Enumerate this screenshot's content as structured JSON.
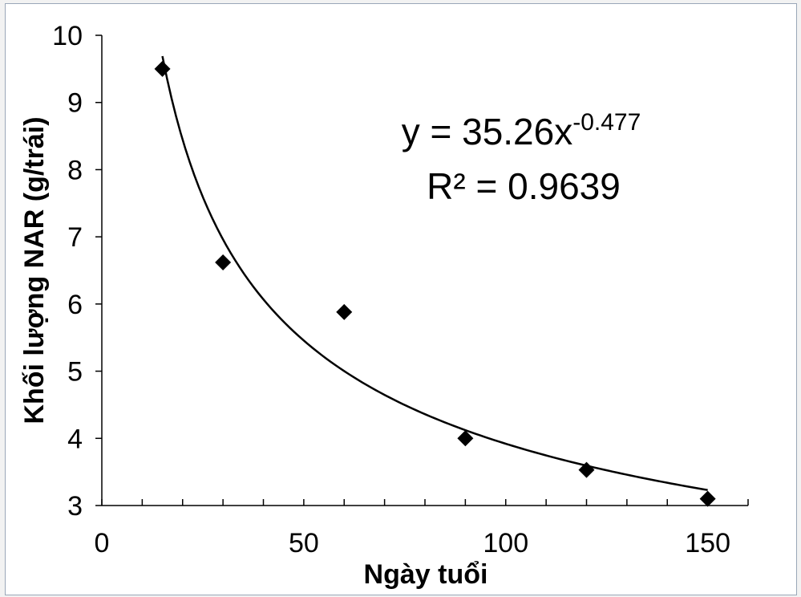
{
  "chart_data": {
    "type": "scatter",
    "xlabel": "Ngày tuổi",
    "ylabel": "Khối lượng NAR (g/trái)",
    "xlim": [
      0,
      160
    ],
    "ylim": [
      3,
      10
    ],
    "x_ticks": [
      "0",
      "50",
      "100",
      "150"
    ],
    "y_ticks": [
      "3",
      "4",
      "5",
      "6",
      "7",
      "8",
      "9",
      "10"
    ],
    "x_minor_step": 10,
    "grid": false,
    "marker": "diamond",
    "series": [
      {
        "x": [
          15,
          30,
          60,
          90,
          120,
          150
        ],
        "y": [
          9.5,
          6.62,
          5.88,
          4.0,
          3.53,
          3.1
        ]
      }
    ],
    "trendline": {
      "type": "power",
      "a": 35.26,
      "b": -0.477,
      "x_range": [
        15,
        150
      ],
      "equation_base": "y = 35.26x",
      "equation_exponent": "-0.477",
      "r2_label": "R² = 0.9639"
    }
  }
}
